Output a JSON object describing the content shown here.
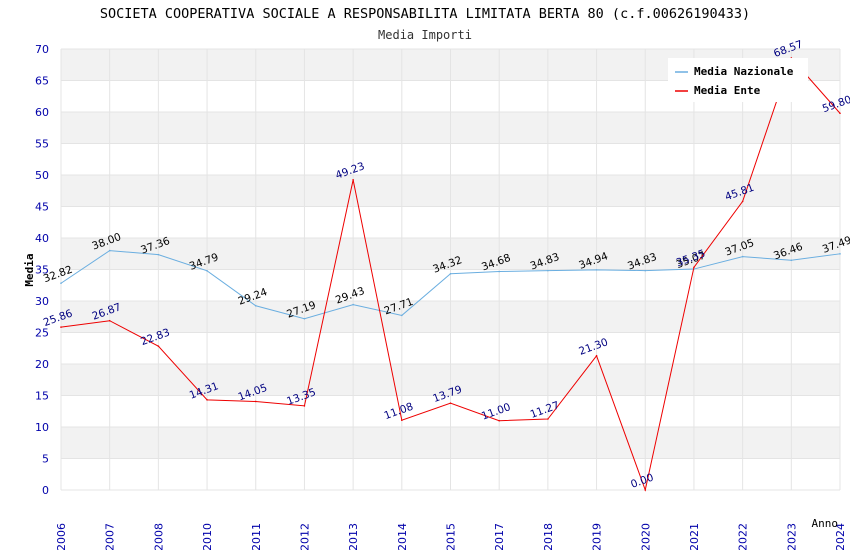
{
  "chart_data": {
    "type": "line",
    "title": "SOCIETA COOPERATIVA SOCIALE A RESPONSABILITA LIMITATA BERTA 80 (c.f.00626190433)",
    "subtitle": "Media Importi",
    "xlabel": "Anno",
    "ylabel": "Media",
    "ylim": [
      0,
      70
    ],
    "ytick_step": 5,
    "grid": true,
    "legend_position": "top-right",
    "categories": [
      "2006",
      "2007",
      "2008",
      "2010",
      "2011",
      "2012",
      "2013",
      "2014",
      "2015",
      "2017",
      "2018",
      "2019",
      "2020",
      "2021",
      "2022",
      "2023",
      "2024"
    ],
    "series": [
      {
        "name": "Media Nazionale",
        "color": "#6aaee0",
        "values": [
          32.82,
          38.0,
          37.36,
          34.79,
          29.24,
          27.19,
          29.43,
          27.71,
          34.32,
          34.68,
          34.83,
          34.94,
          34.83,
          35.07,
          37.05,
          36.46,
          37.49
        ],
        "labels": [
          "32.82",
          "38.00",
          "37.36",
          "34.79",
          "29.24",
          "27.19",
          "29.43",
          "27.71",
          "34.32",
          "34.68",
          "34.83",
          "34.94",
          "34.83",
          "35.07",
          "37.05",
          "36.46",
          "37.49"
        ]
      },
      {
        "name": "Media Ente",
        "color": "#ee0000",
        "values": [
          25.86,
          26.87,
          22.83,
          14.31,
          14.05,
          13.35,
          49.23,
          11.08,
          13.79,
          11.0,
          11.27,
          21.3,
          0.0,
          35.35,
          45.81,
          68.57,
          59.8
        ],
        "labels": [
          "25.86",
          "26.87",
          "22.83",
          "14.31",
          "14.05",
          "13.35",
          "49.23",
          "11.08",
          "13.79",
          "11.00",
          "11.27",
          "21.30",
          "0.00",
          "35.35",
          "45.81",
          "68.57",
          "59.80"
        ]
      }
    ]
  },
  "colors": {
    "band": "#f2f2f2",
    "tick_text": "#0000aa",
    "ente_label": "#000080"
  }
}
